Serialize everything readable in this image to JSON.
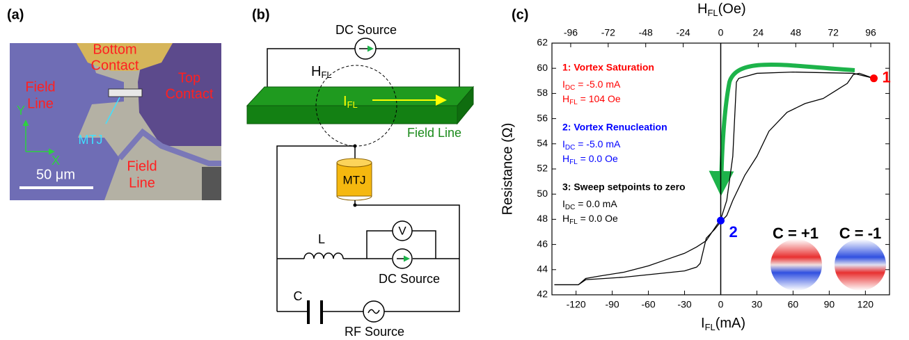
{
  "panel_a": {
    "label": "(a)",
    "bottom_contact": [
      "Bottom",
      "Contact"
    ],
    "top_contact": [
      "Top",
      "Contact"
    ],
    "field_line_left": [
      "Field",
      "Line"
    ],
    "field_line_bottom": [
      "Field",
      "Line"
    ],
    "mtj": "MTJ",
    "axis_y": "Y",
    "axis_x": "X",
    "scale_bar": "50 μm"
  },
  "panel_b": {
    "label": "(b)",
    "dc_source_top": "DC Source",
    "h_fl": {
      "main": "H",
      "sub": "FL"
    },
    "i_fl": {
      "main": "I",
      "sub": "FL"
    },
    "field_line": "Field Line",
    "mtj": "MTJ",
    "voltmeter": "V",
    "inductor": "L",
    "dc_source_bottom": "DC Source",
    "capacitor": "C",
    "rf_source": "RF Source"
  },
  "panel_c_label": "(c)",
  "chart_data": {
    "type": "line",
    "xlabel": {
      "main": "I",
      "sub": "FL",
      "unit": "(mA)"
    },
    "x2label": {
      "main": "H",
      "sub": "FL",
      "unit": "(Oe)"
    },
    "ylabel": "Resistance (Ω)",
    "xlim": [
      -140,
      140
    ],
    "xticks": [
      -120,
      -90,
      -60,
      -30,
      0,
      30,
      60,
      90,
      120
    ],
    "x2lim": [
      -108,
      108
    ],
    "x2ticks": [
      -96,
      -72,
      -48,
      -24,
      0,
      24,
      48,
      72,
      96
    ],
    "ylim": [
      42,
      62
    ],
    "yticks": [
      42,
      44,
      46,
      48,
      50,
      52,
      54,
      56,
      58,
      60,
      62
    ],
    "vline": 0,
    "series": [
      {
        "color": "#000000",
        "x": [
          -138,
          -118,
          -112,
          -80,
          -50,
          -30,
          -20,
          -17,
          -12,
          -5,
          0,
          5,
          10,
          20,
          30,
          40,
          55,
          70,
          85,
          95,
          105,
          110,
          115,
          127
        ],
        "values": [
          42.8,
          42.8,
          43.2,
          43.4,
          43.7,
          43.9,
          44.2,
          44.5,
          46.5,
          47.2,
          47.8,
          48.3,
          49.5,
          51.5,
          53,
          55,
          56.5,
          57.2,
          57.6,
          58.2,
          58.8,
          59.5,
          59.6,
          59.2
        ]
      },
      {
        "color": "#000000",
        "x": [
          127,
          110,
          60,
          30,
          15,
          13,
          10,
          5,
          0,
          -5,
          -12,
          -20,
          -30,
          -45,
          -60,
          -80,
          -100,
          -112,
          -118,
          -138
        ],
        "values": [
          59.2,
          59.6,
          59.7,
          59.6,
          59.2,
          58.9,
          53,
          49.5,
          48,
          47.3,
          46.3,
          45.8,
          45.3,
          44.8,
          44.3,
          43.8,
          43.5,
          43.3,
          42.8,
          42.8
        ]
      }
    ],
    "points": [
      {
        "label": "1",
        "color": "#ff0000",
        "x": 127,
        "value": 59.2
      },
      {
        "label": "2",
        "color": "#0000ff",
        "x": 0,
        "value": 47.9
      }
    ],
    "annotations": [
      {
        "color": "#ff0000",
        "lines": [
          {
            "text": "1: Vortex Saturation"
          },
          {
            "main": "I",
            "sub": "DC",
            "rest": " = -5.0 mA"
          },
          {
            "main": "H",
            "sub": "FL",
            "rest": " = 104 Oe"
          }
        ]
      },
      {
        "color": "#0000ff",
        "lines": [
          {
            "text": "2: Vortex Renucleation"
          },
          {
            "main": "I",
            "sub": "DC",
            "rest": " = -5.0 mA"
          },
          {
            "main": "H",
            "sub": "FL",
            "rest": " = 0.0 Oe"
          }
        ]
      },
      {
        "color": "#000000",
        "lines": [
          {
            "text": "3: Sweep setpoints to zero"
          },
          {
            "main": "I",
            "sub": "DC",
            "rest": " = 0.0 mA"
          },
          {
            "main": "H",
            "sub": "FL",
            "rest": " = 0.0 Oe"
          }
        ]
      }
    ],
    "insets": [
      "C = +1",
      "C = -1"
    ]
  }
}
